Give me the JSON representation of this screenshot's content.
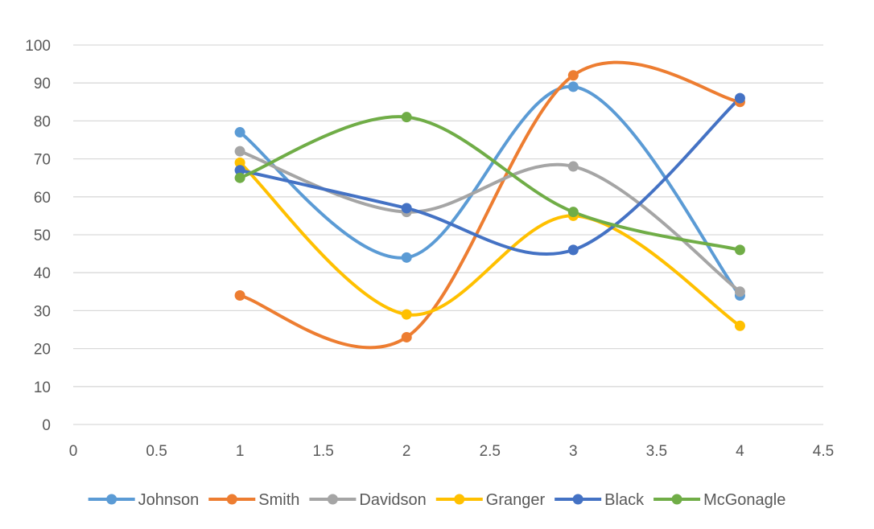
{
  "chart_data": {
    "type": "scatter",
    "title": "",
    "xlabel": "",
    "ylabel": "",
    "xlim": [
      0,
      4.5
    ],
    "ylim": [
      0,
      100
    ],
    "x_ticks": [
      "0",
      "0.5",
      "1",
      "1.5",
      "2",
      "2.5",
      "3",
      "3.5",
      "4",
      "4.5"
    ],
    "y_ticks": [
      "0",
      "10",
      "20",
      "30",
      "40",
      "50",
      "60",
      "70",
      "80",
      "90",
      "100"
    ],
    "grid": "horizontal",
    "smooth_lines": true,
    "legend_position": "bottom",
    "series": [
      {
        "name": "Johnson",
        "color": "#5b9bd5",
        "x": [
          1,
          2,
          3,
          4
        ],
        "y": [
          77,
          44,
          89,
          34
        ]
      },
      {
        "name": "Smith",
        "color": "#ed7d31",
        "x": [
          1,
          2,
          3,
          4
        ],
        "y": [
          34,
          23,
          92,
          85
        ]
      },
      {
        "name": "Davidson",
        "color": "#a5a5a5",
        "x": [
          1,
          2,
          3,
          4
        ],
        "y": [
          72,
          56,
          68,
          35
        ]
      },
      {
        "name": "Granger",
        "color": "#ffc000",
        "x": [
          1,
          2,
          3,
          4
        ],
        "y": [
          69,
          29,
          55,
          26
        ]
      },
      {
        "name": "Black",
        "color": "#4472c4",
        "x": [
          1,
          2,
          3,
          4
        ],
        "y": [
          67,
          57,
          46,
          86
        ]
      },
      {
        "name": "McGonagle",
        "color": "#70ad47",
        "x": [
          1,
          2,
          3,
          4
        ],
        "y": [
          65,
          81,
          56,
          46
        ]
      }
    ]
  }
}
